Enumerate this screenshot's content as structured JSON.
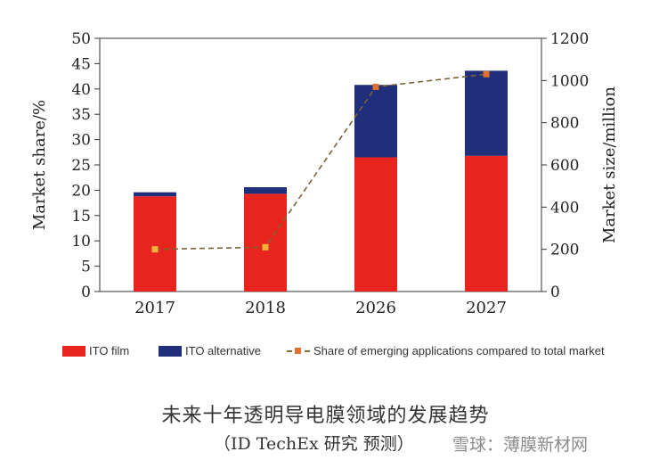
{
  "chart_data": {
    "type": "bar",
    "categories": [
      "2017",
      "2018",
      "2026",
      "2027"
    ],
    "series": [
      {
        "name": "ITO film",
        "axis": "left",
        "color": "#e8241e",
        "values": [
          18.8,
          19.3,
          26.5,
          26.8
        ]
      },
      {
        "name": "ITO alternative",
        "axis": "left",
        "color": "#1f2f7c",
        "values": [
          0.8,
          1.3,
          14.3,
          16.8
        ]
      },
      {
        "name": "Share of emerging applications compared to total market",
        "axis": "right",
        "type": "line",
        "color": "#e07030",
        "values": [
          200,
          210,
          970,
          1030
        ]
      }
    ],
    "ylabel": "Market share/%",
    "y2label": "Market size/million",
    "ylim": [
      0,
      50
    ],
    "y2lim": [
      0,
      1200
    ],
    "yticks": [
      "0",
      "5",
      "10",
      "15",
      "20",
      "25",
      "30",
      "35",
      "40",
      "45",
      "50"
    ],
    "y2ticks": [
      "0",
      "200",
      "400",
      "600",
      "800",
      "1000",
      "1200"
    ],
    "stacked": true,
    "grid": false,
    "legend": "bottom"
  },
  "caption": {
    "line1": "未来十年透明导电膜领域的发展趋势",
    "line2": "（ID TechEx 研究  预测）"
  },
  "watermark": "雪球：薄膜新材网"
}
